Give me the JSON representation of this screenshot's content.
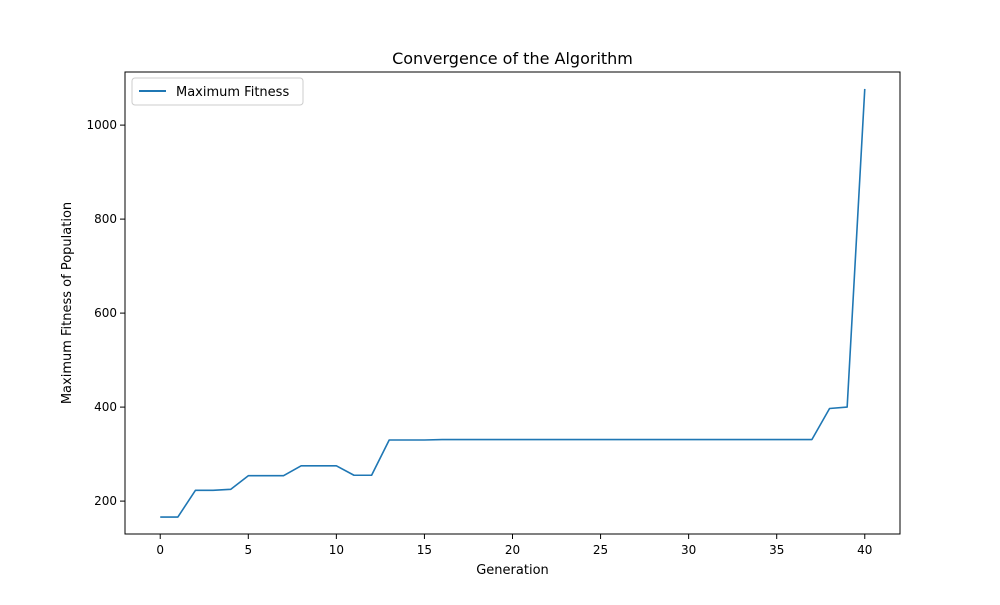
{
  "chart_data": {
    "type": "line",
    "title": "Convergence of the Algorithm",
    "xlabel": "Generation",
    "ylabel": "Maximum Fitness of Population",
    "xlim": [
      -2,
      42
    ],
    "ylim": [
      130,
      1113
    ],
    "xticks": [
      0,
      5,
      10,
      15,
      20,
      25,
      30,
      35,
      40
    ],
    "yticks": [
      200,
      400,
      600,
      800,
      1000
    ],
    "grid": false,
    "legend": "top-left",
    "colors": {
      "series": "#1f77b4"
    },
    "series": [
      {
        "name": "Maximum Fitness",
        "x": [
          0,
          1,
          2,
          3,
          4,
          5,
          6,
          7,
          8,
          9,
          10,
          11,
          12,
          13,
          14,
          15,
          16,
          17,
          18,
          19,
          20,
          21,
          22,
          23,
          24,
          25,
          26,
          27,
          28,
          29,
          30,
          31,
          32,
          33,
          34,
          35,
          36,
          37,
          38,
          39,
          40
        ],
        "y": [
          166,
          166,
          223,
          223,
          225,
          254,
          254,
          254,
          275,
          275,
          275,
          255,
          255,
          330,
          330,
          330,
          331,
          331,
          331,
          331,
          331,
          331,
          331,
          331,
          331,
          331,
          331,
          331,
          331,
          331,
          331,
          331,
          331,
          331,
          331,
          331,
          331,
          331,
          397,
          400,
          1077
        ]
      }
    ]
  }
}
